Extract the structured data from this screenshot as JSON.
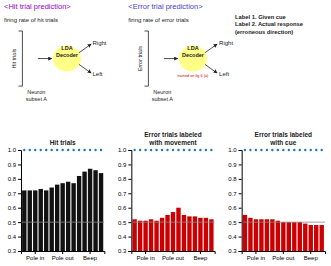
{
  "chart_data": [
    {
      "type": "bar",
      "title": "Hit trials",
      "categories": [
        null,
        null,
        "Pole in",
        null,
        null,
        null,
        null,
        "Pole out",
        null,
        null,
        null,
        null,
        "Beep",
        null,
        null
      ],
      "values": [
        0.72,
        0.72,
        0.72,
        0.73,
        0.72,
        0.74,
        0.76,
        0.77,
        0.78,
        0.77,
        0.82,
        0.85,
        0.87,
        0.86,
        0.84
      ],
      "color": "#111111",
      "ylim": [
        0.3,
        1.0
      ],
      "yticks": [
        0.3,
        0.4,
        0.5,
        0.6,
        0.7,
        0.8,
        0.9,
        {
          "value": 1.0,
          "label": "1.0"
        }
      ],
      "reference_line": 0.5,
      "grid": false,
      "annotations": [
        {
          "text": "<Hit trial prediction>",
          "color": "#9900cc"
        },
        {
          "text": "firing rate of hit trials"
        },
        {
          "text": "Hit trials"
        },
        {
          "text": "Neuron\nsubset A"
        },
        {
          "text": "LDA\nDecoder"
        },
        {
          "text": "Right"
        },
        {
          "text": "Left"
        },
        {
          "text": "<Error trial prediction>",
          "color": "#4444cc"
        },
        {
          "text": "firing rate of error trials"
        },
        {
          "text": "Error trials"
        },
        {
          "text": "Neuron\nsubset A"
        },
        {
          "text": "LDA\nDecoder"
        },
        {
          "text": "trained on fig 6 (a)",
          "color": "#cc0000"
        },
        {
          "text": "Right"
        },
        {
          "text": "Left"
        },
        {
          "text": "Label 1. Given cue\nLabel 2. Actual response\n(erroneous direction)"
        }
      ]
    },
    {
      "type": "bar",
      "title": "Error trials labeled\nwith movement",
      "categories": [
        null,
        null,
        "Pole in",
        null,
        null,
        null,
        null,
        "Pole out",
        null,
        null,
        null,
        null,
        "Beep",
        null,
        null
      ],
      "values": [
        0.52,
        0.51,
        0.51,
        0.52,
        0.51,
        0.53,
        0.55,
        0.57,
        0.6,
        0.55,
        0.54,
        0.54,
        0.53,
        0.53,
        0.52
      ],
      "color": "#cc0000",
      "ylim": [
        0.3,
        1.0
      ],
      "yticks": [
        0.3,
        0.4,
        0.5,
        0.6,
        0.7,
        0.8,
        0.9,
        {
          "value": 1.0,
          "label": "1.0"
        }
      ],
      "reference_line": 0.5,
      "grid": false
    },
    {
      "type": "bar",
      "title": "Error trials labeled\nwith cue",
      "categories": [
        null,
        null,
        "Pole in",
        null,
        null,
        null,
        null,
        "Pole out",
        null,
        null,
        null,
        null,
        "Beep",
        null,
        null
      ],
      "values": [
        0.55,
        0.53,
        0.52,
        0.52,
        0.52,
        0.52,
        0.51,
        0.5,
        0.5,
        0.5,
        0.5,
        0.49,
        0.48,
        0.48,
        0.48
      ],
      "color": "#cc0000",
      "ylim": [
        0.3,
        1.0
      ],
      "yticks": [
        0.3,
        0.4,
        0.5,
        0.6,
        0.7,
        0.8,
        0.9,
        {
          "value": 1.0,
          "label": "1.0"
        }
      ],
      "reference_line": 0.5,
      "grid": false
    }
  ]
}
